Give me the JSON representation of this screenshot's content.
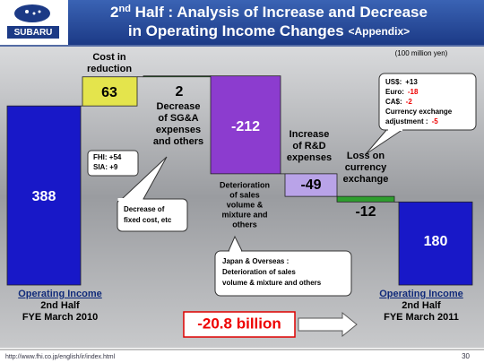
{
  "header": {
    "logo": "SUBARU",
    "title": {
      "num": "2",
      "sup": "nd",
      "rest": " Half : Analysis of Increase and Decrease",
      "line2": "in Operating Income Changes ",
      "tag": "<Appendix>"
    }
  },
  "chart_data": {
    "type": "waterfall",
    "unit": "(100 million yen)",
    "categories": [
      [
        "Operating Income",
        "2nd Half",
        "FYE March 2010"
      ],
      [
        "Cost in",
        "reduction"
      ],
      [
        "Decrease",
        "of SG&A",
        "expenses",
        "and others"
      ],
      [
        "Deterioration",
        "of sales",
        "volume &",
        "mixture and",
        "others"
      ],
      [
        "Increase",
        "of R&D",
        "expenses"
      ],
      [
        "Loss on",
        "currency",
        "exchange"
      ],
      [
        "Operating Income",
        "2nd Half",
        "FYE March 2011"
      ]
    ],
    "values": [
      388,
      63,
      2,
      -212,
      -49,
      -12,
      180
    ],
    "colors": [
      "#1818c8",
      "#e4e44c",
      "#2e9e2e",
      "#8c3ccf",
      "#b9a3e8",
      "#2e9e2e",
      "#1818c8"
    ],
    "annotations": {
      "cost_breakdown": [
        "FHI: +54",
        "SIA: +9"
      ],
      "fixed_cost": [
        "Decrease of",
        "fixed cost, etc"
      ],
      "sales": [
        "Japan & Overseas :",
        "Deterioration of sales",
        "volume & mixture and others"
      ],
      "currency": [
        [
          "US$:",
          "+13"
        ],
        [
          "Euro:",
          "-18"
        ],
        [
          "CA$:",
          "-2"
        ],
        [
          "Currency exchange"
        ],
        [
          "adjustment :",
          "-5"
        ]
      ],
      "change": "-20.8 billion"
    }
  },
  "footer": {
    "url": "http://www.fhi.co.jp/english/ir/index.html",
    "page": "30"
  }
}
